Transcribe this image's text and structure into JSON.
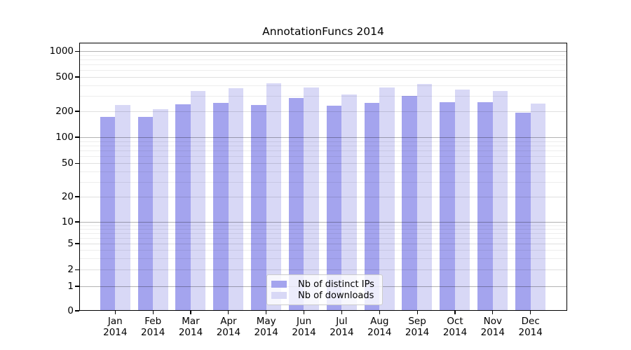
{
  "chart_data": {
    "type": "bar",
    "title": "AnnotationFuncs 2014",
    "x": {
      "months": [
        "Jan",
        "Feb",
        "Mar",
        "Apr",
        "May",
        "Jun",
        "Jul",
        "Aug",
        "Sep",
        "Oct",
        "Nov",
        "Dec"
      ],
      "year": "2014"
    },
    "yaxis": {
      "scale": "symlog",
      "ticks": [
        0,
        1,
        2,
        5,
        10,
        20,
        50,
        100,
        200,
        500,
        1000
      ],
      "major_decades": [
        1,
        10,
        100,
        1000
      ],
      "range": [
        0,
        1250
      ]
    },
    "series": [
      {
        "name": "Nb of distinct IPs",
        "color": "#a4a4ee",
        "values": [
          173,
          173,
          241,
          249,
          236,
          286,
          232,
          250,
          300,
          255,
          253,
          193
        ]
      },
      {
        "name": "Nb of downloads",
        "color": "#d8d8f6",
        "values": [
          235,
          211,
          340,
          371,
          425,
          376,
          314,
          380,
          415,
          355,
          344,
          244
        ]
      }
    ],
    "grid": {
      "horizontal": true,
      "vertical": false
    },
    "legend": {
      "position": "lower-center",
      "entries": [
        "Nb of distinct IPs",
        "Nb of downloads"
      ]
    }
  }
}
